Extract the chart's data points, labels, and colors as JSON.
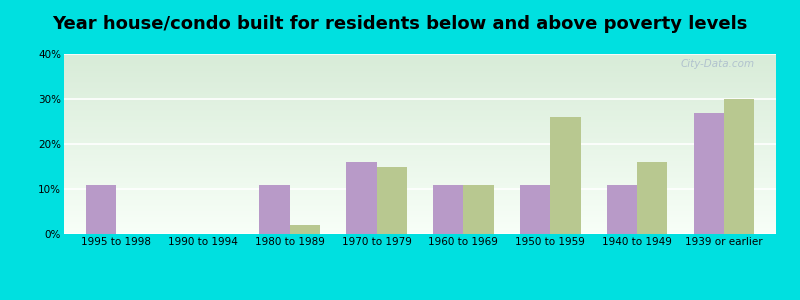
{
  "title": "Year house/condo built for residents below and above poverty levels",
  "categories": [
    "1995 to 1998",
    "1990 to 1994",
    "1980 to 1989",
    "1970 to 1979",
    "1960 to 1969",
    "1950 to 1959",
    "1940 to 1949",
    "1939 or earlier"
  ],
  "below_poverty": [
    11,
    0,
    11,
    16,
    11,
    11,
    11,
    27
  ],
  "above_poverty": [
    0,
    0,
    2,
    15,
    11,
    26,
    16,
    30
  ],
  "below_color": "#b89ac8",
  "above_color": "#b8c890",
  "outer_bg": "#00e0e0",
  "grad_top": "#d8ecd8",
  "grad_bottom": "#f8fff8",
  "ylim": [
    0,
    40
  ],
  "yticks": [
    0,
    10,
    20,
    30,
    40
  ],
  "bar_width": 0.35,
  "title_fontsize": 13,
  "tick_fontsize": 7.5,
  "legend_fontsize": 9
}
